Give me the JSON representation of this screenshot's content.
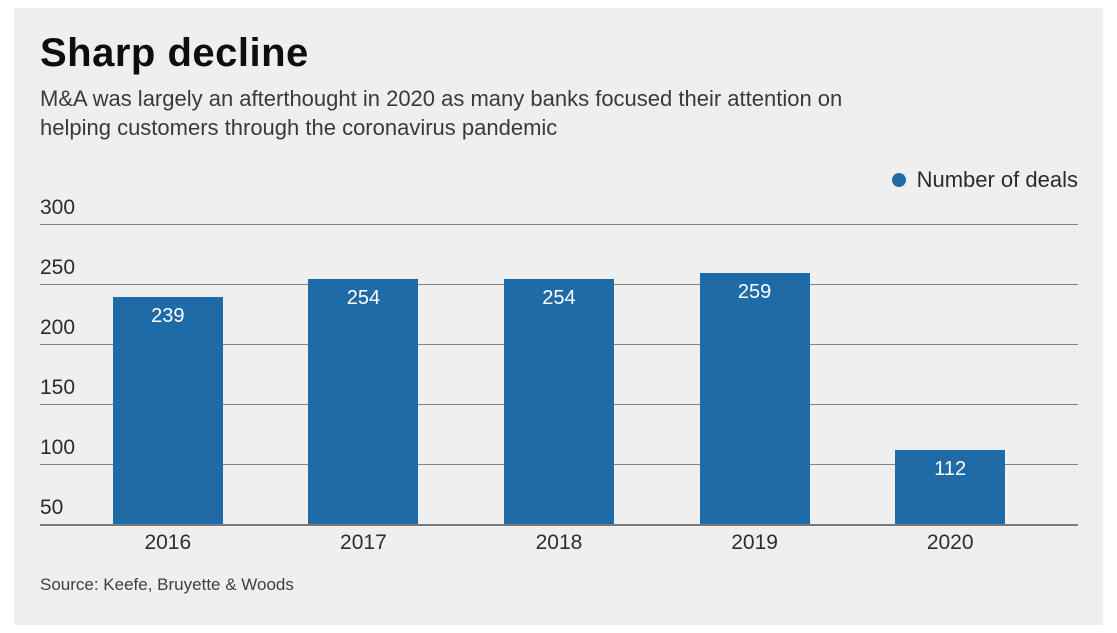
{
  "chart": {
    "title": "Sharp decline",
    "subtitle_line1": "M&A was largely an afterthought in 2020 as many banks focused their attention on",
    "subtitle_line2": "helping customers through the coronavirus pandemic",
    "legend_label": "Number of deals",
    "source": "Source: Keefe, Bruyette & Woods"
  },
  "chart_data": {
    "type": "bar",
    "title": "Sharp decline",
    "subtitle": "M&A was largely an afterthought in 2020 as many banks focused their attention on helping customers through the coronavirus pandemic",
    "categories": [
      "2016",
      "2017",
      "2018",
      "2019",
      "2020"
    ],
    "values": [
      239,
      254,
      254,
      259,
      112
    ],
    "series_name": "Number of deals",
    "xlabel": "",
    "ylabel": "",
    "ylim": [
      50,
      300
    ],
    "yticks": [
      50,
      100,
      150,
      200,
      250,
      300
    ],
    "grid": true,
    "legend_position": "top-right",
    "value_labels": "inside-top",
    "source": "Source: Keefe, Bruyette & Woods"
  },
  "colors": {
    "bar": "#1f6ba8",
    "card_background": "#efefef",
    "page_background": "#ffffff",
    "gridline": "#858585",
    "title_text": "#0e0e0e",
    "subtitle_text": "#3a3a3a",
    "bar_label_text": "#ffffff"
  }
}
